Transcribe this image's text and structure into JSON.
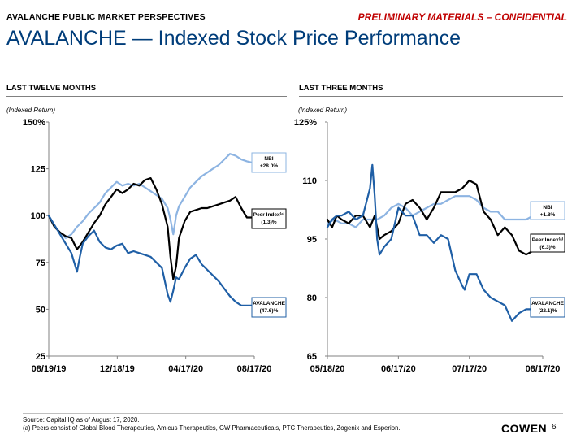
{
  "header": {
    "left": "AVALANCHE PUBLIC MARKET PERSPECTIVES",
    "right": "PRELIMINARY MATERIALS – CONFIDENTIAL"
  },
  "title": "AVALANCHE — Indexed Stock Price Performance",
  "colors": {
    "nbi": "#8db4e2",
    "peer": "#000000",
    "avalanche": "#1f5fa6",
    "title": "#003d7a",
    "confidential": "#c00000"
  },
  "footer": {
    "source": "Source: Capital IQ as of August 17, 2020.",
    "note": "(a) Peers consist of Global Blood Therapeutics, Amicus Therapeutics, GW Pharmaceuticals, PTC Therapeutics, Zogenix and Esperion.",
    "logo": "COWEN",
    "page": "6"
  },
  "chart_data": [
    {
      "type": "line",
      "section_title": "LAST TWELVE MONTHS",
      "ylabel": "(Indexed Return)",
      "ylim": [
        25,
        150
      ],
      "y_ticks": [
        {
          "v": 150,
          "t": "150%"
        },
        {
          "v": 125,
          "t": "125"
        },
        {
          "v": 100,
          "t": "100"
        },
        {
          "v": 75,
          "t": "75"
        },
        {
          "v": 50,
          "t": "50"
        },
        {
          "v": 25,
          "t": "25"
        }
      ],
      "x_ticks": [
        {
          "x": 0,
          "t": "08/19/19"
        },
        {
          "x": 121,
          "t": "12/18/19"
        },
        {
          "x": 242,
          "t": "04/17/20"
        },
        {
          "x": 363,
          "t": "08/17/20"
        }
      ],
      "xlim": [
        0,
        363
      ],
      "series": [
        {
          "name": "NBI",
          "color": "#8db4e2",
          "label": "NBI",
          "sublabel": "+28.0%",
          "x": [
            0,
            10,
            20,
            30,
            40,
            50,
            60,
            70,
            80,
            90,
            100,
            110,
            120,
            130,
            140,
            150,
            160,
            170,
            180,
            190,
            200,
            210,
            215,
            220,
            225,
            230,
            240,
            250,
            260,
            270,
            280,
            290,
            300,
            310,
            320,
            330,
            340,
            350,
            363
          ],
          "y": [
            100,
            94,
            91,
            88,
            90,
            94,
            97,
            101,
            104,
            107,
            112,
            115,
            118,
            116,
            117,
            116,
            117,
            115,
            113,
            111,
            109,
            104,
            98,
            90,
            100,
            105,
            110,
            115,
            118,
            121,
            123,
            125,
            127,
            130,
            133,
            132,
            130,
            129,
            128
          ]
        },
        {
          "name": "Peer Index",
          "color": "#000000",
          "label": "Peer Index⁽ᵃ⁾",
          "sublabel": "(1.3)%",
          "x": [
            0,
            10,
            20,
            30,
            40,
            50,
            60,
            70,
            80,
            90,
            100,
            110,
            120,
            130,
            140,
            150,
            160,
            170,
            180,
            190,
            200,
            210,
            215,
            220,
            225,
            230,
            240,
            250,
            260,
            270,
            280,
            290,
            300,
            310,
            320,
            330,
            340,
            350,
            363
          ],
          "y": [
            100,
            94,
            91,
            89,
            88,
            82,
            86,
            91,
            96,
            100,
            106,
            110,
            114,
            112,
            114,
            117,
            116,
            119,
            120,
            114,
            106,
            94,
            78,
            66,
            73,
            88,
            97,
            102,
            103,
            104,
            104,
            105,
            106,
            107,
            108,
            110,
            104,
            99,
            99
          ]
        },
        {
          "name": "AVALANCHE",
          "color": "#1f5fa6",
          "label": "AVALANCHE",
          "sublabel": "(47.6)%",
          "x": [
            0,
            10,
            20,
            30,
            40,
            50,
            55,
            60,
            70,
            80,
            90,
            100,
            110,
            120,
            130,
            140,
            150,
            160,
            170,
            180,
            190,
            200,
            210,
            215,
            220,
            225,
            230,
            240,
            250,
            260,
            270,
            280,
            290,
            300,
            310,
            320,
            330,
            340,
            350,
            363
          ],
          "y": [
            100,
            95,
            90,
            85,
            80,
            70,
            78,
            85,
            89,
            92,
            86,
            83,
            82,
            84,
            85,
            80,
            81,
            80,
            79,
            78,
            75,
            72,
            58,
            54,
            60,
            67,
            66,
            72,
            77,
            79,
            74,
            71,
            68,
            65,
            61,
            57,
            54,
            52,
            52,
            52
          ]
        }
      ]
    },
    {
      "type": "line",
      "section_title": "LAST THREE MONTHS",
      "ylabel": "(Indexed Return)",
      "ylim": [
        65,
        125
      ],
      "y_ticks": [
        {
          "v": 125,
          "t": "125%"
        },
        {
          "v": 110,
          "t": "110"
        },
        {
          "v": 95,
          "t": "95"
        },
        {
          "v": 80,
          "t": "80"
        },
        {
          "v": 65,
          "t": "65"
        }
      ],
      "x_ticks": [
        {
          "x": 0,
          "t": "05/18/20"
        },
        {
          "x": 30,
          "t": "06/17/20"
        },
        {
          "x": 60,
          "t": "07/17/20"
        },
        {
          "x": 91,
          "t": "08/17/20"
        }
      ],
      "xlim": [
        0,
        91
      ],
      "series": [
        {
          "name": "NBI",
          "color": "#8db4e2",
          "label": "NBI",
          "sublabel": "+1.8%",
          "x": [
            0,
            3,
            6,
            9,
            12,
            15,
            18,
            21,
            24,
            27,
            30,
            33,
            36,
            39,
            42,
            45,
            48,
            51,
            54,
            57,
            60,
            63,
            66,
            69,
            72,
            75,
            78,
            81,
            84,
            87,
            91
          ],
          "y": [
            99,
            100,
            99,
            99,
            98,
            100,
            100,
            100,
            101,
            103,
            104,
            103,
            101,
            102,
            103,
            104,
            104,
            105,
            106,
            106,
            106,
            105,
            103,
            102,
            102,
            100,
            100,
            100,
            100,
            101,
            102
          ]
        },
        {
          "name": "Peer Index",
          "color": "#000000",
          "label": "Peer Index⁽ᵃ⁾",
          "sublabel": "(6.3)%",
          "x": [
            0,
            2,
            4,
            6,
            9,
            12,
            15,
            18,
            20,
            22,
            24,
            27,
            30,
            33,
            36,
            39,
            42,
            45,
            48,
            51,
            54,
            57,
            60,
            63,
            66,
            69,
            72,
            75,
            78,
            81,
            84,
            87,
            91
          ],
          "y": [
            100,
            98,
            101,
            100,
            99,
            101,
            101,
            98,
            101,
            95,
            96,
            97,
            99,
            104,
            105,
            103,
            100,
            103,
            107,
            107,
            107,
            108,
            110,
            109,
            102,
            100,
            96,
            98,
            96,
            92,
            91,
            92,
            94
          ]
        },
        {
          "name": "AVALANCHE",
          "color": "#1f5fa6",
          "label": "AVALANCHE",
          "sublabel": "(22.1)%",
          "x": [
            0,
            2,
            4,
            6,
            9,
            12,
            15,
            18,
            19,
            20,
            21,
            22,
            24,
            27,
            30,
            33,
            36,
            39,
            42,
            45,
            48,
            51,
            54,
            57,
            58,
            60,
            63,
            66,
            69,
            72,
            75,
            78,
            81,
            84,
            87,
            91
          ],
          "y": [
            98,
            100,
            101,
            101,
            102,
            100,
            101,
            108,
            114,
            106,
            95,
            91,
            93,
            95,
            103,
            101,
            101,
            96,
            96,
            94,
            96,
            95,
            87,
            83,
            82,
            86,
            86,
            82,
            80,
            79,
            78,
            74,
            76,
            77,
            77,
            78
          ]
        }
      ]
    }
  ]
}
